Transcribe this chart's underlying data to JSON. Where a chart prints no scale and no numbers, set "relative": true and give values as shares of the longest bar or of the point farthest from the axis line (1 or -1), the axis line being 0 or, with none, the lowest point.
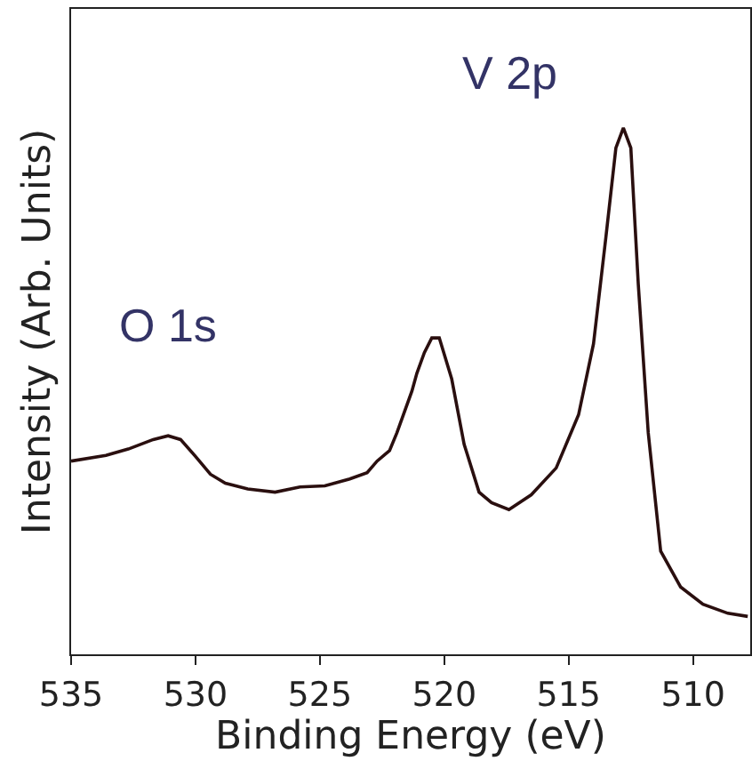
{
  "chart_data": {
    "type": "line",
    "relative": true,
    "xlabel": "Binding Energy (eV)",
    "ylabel": "Intensity (Arb. Units)",
    "xlim": [
      535,
      507.7
    ],
    "xticks": [
      535,
      530,
      525,
      520,
      515,
      510
    ],
    "marker": "none",
    "line_style": "solid",
    "x": [
      535,
      533.6,
      532.7,
      531.7,
      531.1,
      530.6,
      530.0,
      529.4,
      528.8,
      527.9,
      526.8,
      525.8,
      524.8,
      523.8,
      523.1,
      522.7,
      522.2,
      521.9,
      521.3,
      521.1,
      520.8,
      520.5,
      520.2,
      519.7,
      519.2,
      518.6,
      518.1,
      517.4,
      516.5,
      515.5,
      514.6,
      514.0,
      513.5,
      513.1,
      512.8,
      512.5,
      512.2,
      511.8,
      511.3,
      510.5,
      509.6,
      508.6,
      507.8
    ],
    "series": [
      {
        "color": "#2a0f0f",
        "values": [
          0.367,
          0.378,
          0.39,
          0.408,
          0.415,
          0.408,
          0.376,
          0.342,
          0.325,
          0.314,
          0.308,
          0.318,
          0.32,
          0.333,
          0.345,
          0.367,
          0.387,
          0.421,
          0.5,
          0.534,
          0.573,
          0.601,
          0.601,
          0.523,
          0.399,
          0.308,
          0.288,
          0.275,
          0.303,
          0.354,
          0.455,
          0.59,
          0.793,
          0.962,
          1.0,
          0.962,
          0.703,
          0.421,
          0.196,
          0.128,
          0.095,
          0.078,
          0.072
        ]
      }
    ],
    "annotations": [
      "O 1s",
      "V 2p"
    ]
  }
}
